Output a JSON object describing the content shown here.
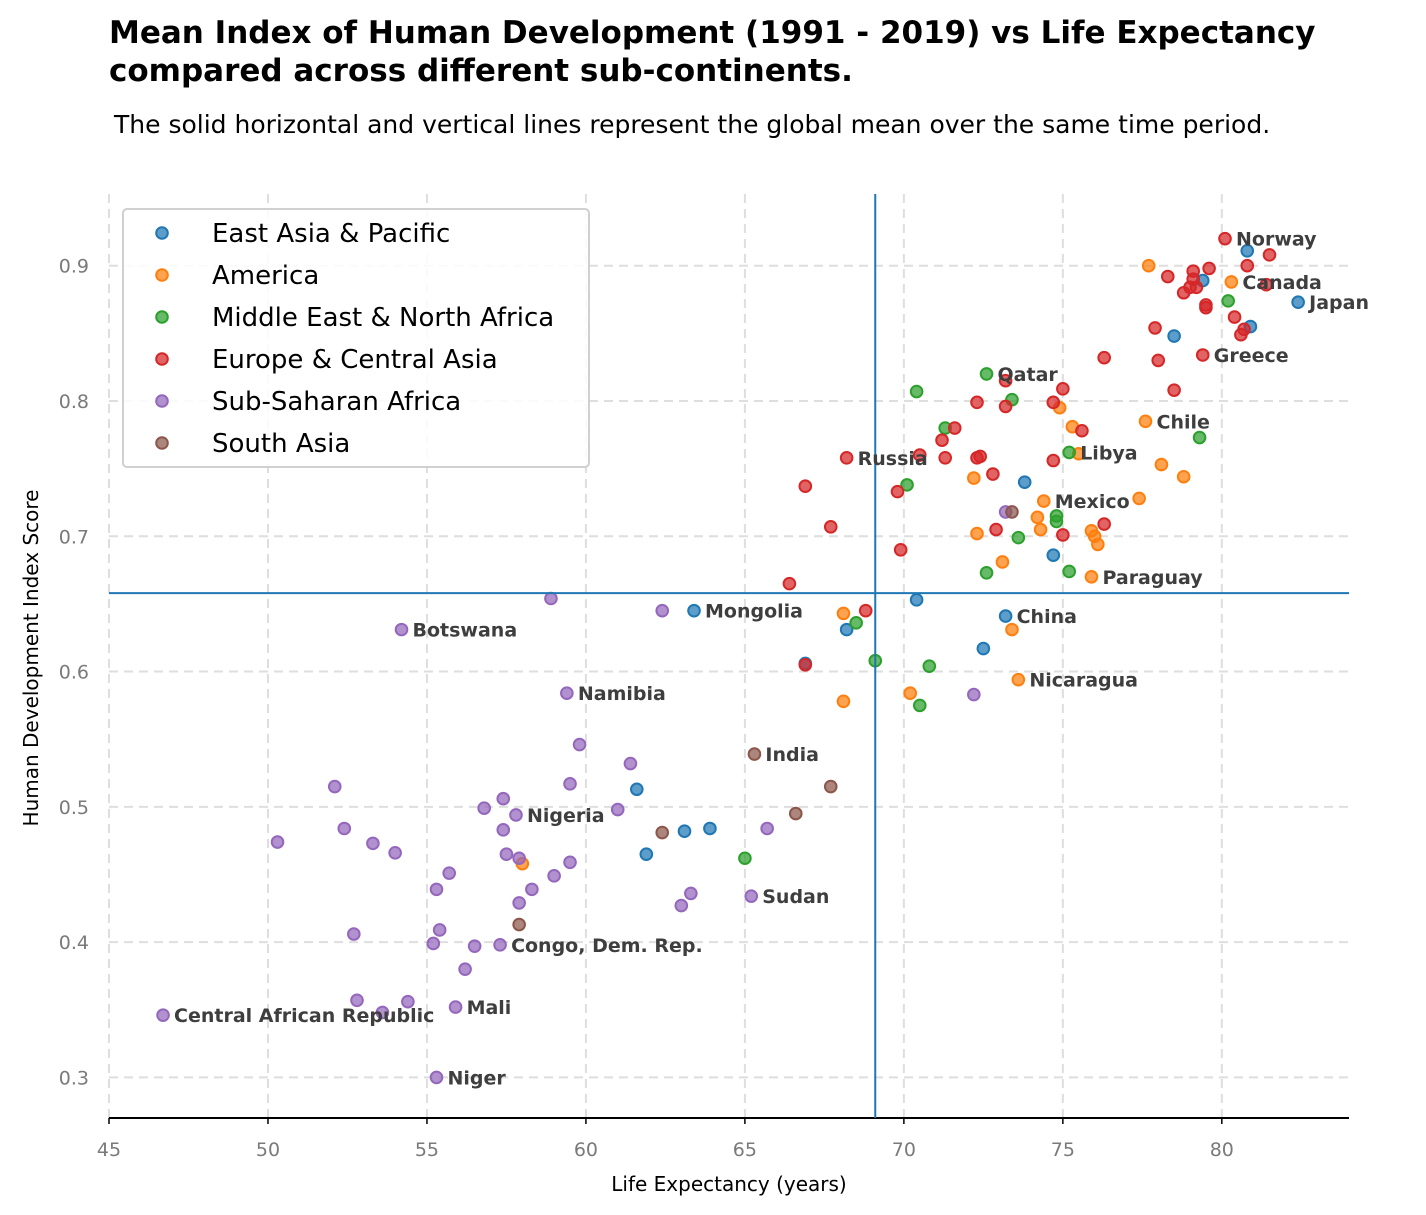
{
  "chart_data": {
    "type": "scatter",
    "title_lines": [
      "Mean Index of Human Development (1991 - 2019) vs Life Expectancy",
      "compared across different sub-continents."
    ],
    "subtitle": "The solid horizontal and vertical lines represent the global mean over the same time period.",
    "xlabel": "Life Expectancy (years)",
    "ylabel": "Human Development Index Score",
    "xlim": [
      45,
      84
    ],
    "ylim": [
      0.27,
      0.953
    ],
    "xticks": [
      45,
      50,
      55,
      60,
      65,
      70,
      75,
      80
    ],
    "yticks": [
      0.3,
      0.4,
      0.5,
      0.6,
      0.7,
      0.8,
      0.9
    ],
    "grid": true,
    "legend_position": "top-left",
    "global_mean": {
      "x": 69.1,
      "y": 0.658
    },
    "mean_line_color": "#1f77b4",
    "series": [
      {
        "name": "East Asia & Pacific",
        "color": "#1f77b4",
        "points": [
          [
            80.8,
            0.911
          ],
          [
            79.4,
            0.889
          ],
          [
            80.9,
            0.855
          ],
          [
            78.5,
            0.848
          ],
          [
            82.4,
            0.873
          ],
          [
            73.8,
            0.74
          ],
          [
            74.7,
            0.686
          ],
          [
            70.4,
            0.653
          ],
          [
            63.4,
            0.645
          ],
          [
            73.2,
            0.641
          ],
          [
            68.2,
            0.631
          ],
          [
            72.5,
            0.617
          ],
          [
            66.9,
            0.606
          ],
          [
            61.6,
            0.513
          ],
          [
            63.9,
            0.484
          ],
          [
            63.1,
            0.482
          ],
          [
            61.9,
            0.465
          ]
        ]
      },
      {
        "name": "America",
        "color": "#ff7f0e",
        "points": [
          [
            77.7,
            0.9
          ],
          [
            80.3,
            0.888
          ],
          [
            74.9,
            0.795
          ],
          [
            75.3,
            0.781
          ],
          [
            77.6,
            0.785
          ],
          [
            75.5,
            0.761
          ],
          [
            78.1,
            0.753
          ],
          [
            78.8,
            0.744
          ],
          [
            72.2,
            0.743
          ],
          [
            77.4,
            0.728
          ],
          [
            74.4,
            0.726
          ],
          [
            74.2,
            0.714
          ],
          [
            74.3,
            0.705
          ],
          [
            75.9,
            0.704
          ],
          [
            76.0,
            0.7
          ],
          [
            72.3,
            0.702
          ],
          [
            76.1,
            0.694
          ],
          [
            73.1,
            0.681
          ],
          [
            75.9,
            0.67
          ],
          [
            68.1,
            0.643
          ],
          [
            73.4,
            0.631
          ],
          [
            73.6,
            0.594
          ],
          [
            70.2,
            0.584
          ],
          [
            68.1,
            0.578
          ],
          [
            58.0,
            0.458
          ]
        ]
      },
      {
        "name": "Middle East & North Africa",
        "color": "#2ca02c",
        "points": [
          [
            80.2,
            0.874
          ],
          [
            72.6,
            0.82
          ],
          [
            70.4,
            0.807
          ],
          [
            73.4,
            0.801
          ],
          [
            71.3,
            0.78
          ],
          [
            79.3,
            0.773
          ],
          [
            75.2,
            0.762
          ],
          [
            70.1,
            0.738
          ],
          [
            74.8,
            0.715
          ],
          [
            74.8,
            0.711
          ],
          [
            73.6,
            0.699
          ],
          [
            72.6,
            0.673
          ],
          [
            75.2,
            0.674
          ],
          [
            68.5,
            0.636
          ],
          [
            69.1,
            0.608
          ],
          [
            70.8,
            0.604
          ],
          [
            70.5,
            0.575
          ],
          [
            65.0,
            0.462
          ]
        ]
      },
      {
        "name": "Europe & Central Asia",
        "color": "#d62728",
        "points": [
          [
            80.1,
            0.92
          ],
          [
            81.5,
            0.908
          ],
          [
            80.8,
            0.9
          ],
          [
            79.6,
            0.898
          ],
          [
            78.3,
            0.892
          ],
          [
            79.1,
            0.896
          ],
          [
            79.1,
            0.89
          ],
          [
            81.4,
            0.886
          ],
          [
            79.0,
            0.884
          ],
          [
            79.2,
            0.884
          ],
          [
            78.8,
            0.88
          ],
          [
            79.5,
            0.871
          ],
          [
            79.5,
            0.869
          ],
          [
            80.4,
            0.862
          ],
          [
            80.7,
            0.853
          ],
          [
            80.6,
            0.849
          ],
          [
            77.9,
            0.854
          ],
          [
            76.3,
            0.832
          ],
          [
            78.0,
            0.83
          ],
          [
            79.4,
            0.834
          ],
          [
            73.2,
            0.815
          ],
          [
            75.0,
            0.809
          ],
          [
            78.5,
            0.808
          ],
          [
            72.3,
            0.799
          ],
          [
            74.7,
            0.799
          ],
          [
            73.2,
            0.796
          ],
          [
            71.6,
            0.78
          ],
          [
            75.6,
            0.778
          ],
          [
            71.2,
            0.771
          ],
          [
            70.5,
            0.76
          ],
          [
            72.4,
            0.759
          ],
          [
            72.3,
            0.758
          ],
          [
            71.3,
            0.758
          ],
          [
            74.7,
            0.756
          ],
          [
            68.2,
            0.758
          ],
          [
            72.8,
            0.746
          ],
          [
            66.9,
            0.737
          ],
          [
            69.8,
            0.733
          ],
          [
            76.3,
            0.709
          ],
          [
            67.7,
            0.707
          ],
          [
            72.9,
            0.705
          ],
          [
            75.0,
            0.701
          ],
          [
            69.9,
            0.69
          ],
          [
            66.4,
            0.665
          ],
          [
            68.8,
            0.645
          ],
          [
            66.9,
            0.605
          ]
        ]
      },
      {
        "name": "Sub-Saharan Africa",
        "color": "#9467bd",
        "points": [
          [
            58.9,
            0.654
          ],
          [
            62.4,
            0.645
          ],
          [
            54.2,
            0.631
          ],
          [
            73.2,
            0.718
          ],
          [
            72.2,
            0.583
          ],
          [
            59.4,
            0.584
          ],
          [
            59.8,
            0.546
          ],
          [
            61.4,
            0.532
          ],
          [
            59.5,
            0.517
          ],
          [
            52.1,
            0.515
          ],
          [
            57.4,
            0.506
          ],
          [
            56.8,
            0.499
          ],
          [
            61.0,
            0.498
          ],
          [
            57.8,
            0.494
          ],
          [
            52.4,
            0.484
          ],
          [
            57.4,
            0.483
          ],
          [
            65.7,
            0.484
          ],
          [
            50.3,
            0.474
          ],
          [
            53.3,
            0.473
          ],
          [
            54.0,
            0.466
          ],
          [
            57.5,
            0.465
          ],
          [
            57.9,
            0.462
          ],
          [
            59.5,
            0.459
          ],
          [
            55.7,
            0.451
          ],
          [
            59.0,
            0.449
          ],
          [
            55.3,
            0.439
          ],
          [
            58.3,
            0.439
          ],
          [
            63.3,
            0.436
          ],
          [
            65.2,
            0.434
          ],
          [
            57.9,
            0.429
          ],
          [
            63.0,
            0.427
          ],
          [
            55.4,
            0.409
          ],
          [
            52.7,
            0.406
          ],
          [
            55.2,
            0.399
          ],
          [
            57.3,
            0.398
          ],
          [
            56.5,
            0.397
          ],
          [
            56.2,
            0.38
          ],
          [
            52.8,
            0.357
          ],
          [
            54.4,
            0.356
          ],
          [
            55.9,
            0.352
          ],
          [
            53.6,
            0.348
          ],
          [
            46.7,
            0.346
          ],
          [
            55.3,
            0.3
          ]
        ]
      },
      {
        "name": "South Asia",
        "color": "#8c564b",
        "points": [
          [
            73.4,
            0.718
          ],
          [
            65.3,
            0.539
          ],
          [
            67.7,
            0.515
          ],
          [
            66.6,
            0.495
          ],
          [
            62.4,
            0.481
          ],
          [
            57.9,
            0.413
          ]
        ]
      }
    ],
    "annotations": [
      {
        "text": "Norway",
        "x": 80.1,
        "y": 0.92
      },
      {
        "text": "Canada",
        "x": 80.3,
        "y": 0.888
      },
      {
        "text": "Japan",
        "x": 82.4,
        "y": 0.873
      },
      {
        "text": "Greece",
        "x": 79.4,
        "y": 0.834
      },
      {
        "text": "Qatar",
        "x": 72.6,
        "y": 0.82
      },
      {
        "text": "Chile",
        "x": 77.6,
        "y": 0.785
      },
      {
        "text": "Libya",
        "x": 75.2,
        "y": 0.762
      },
      {
        "text": "Russia",
        "x": 68.2,
        "y": 0.758
      },
      {
        "text": "Mexico",
        "x": 74.4,
        "y": 0.726
      },
      {
        "text": "Paraguay",
        "x": 75.9,
        "y": 0.67
      },
      {
        "text": "Mongolia",
        "x": 63.4,
        "y": 0.645
      },
      {
        "text": "China",
        "x": 73.2,
        "y": 0.641
      },
      {
        "text": "Botswana",
        "x": 54.2,
        "y": 0.631
      },
      {
        "text": "Nicaragua",
        "x": 73.6,
        "y": 0.594
      },
      {
        "text": "Namibia",
        "x": 59.4,
        "y": 0.584
      },
      {
        "text": "India",
        "x": 65.3,
        "y": 0.539
      },
      {
        "text": "Nigeria",
        "x": 57.8,
        "y": 0.494
      },
      {
        "text": "Sudan",
        "x": 65.2,
        "y": 0.434
      },
      {
        "text": "Congo, Dem. Rep.",
        "x": 57.3,
        "y": 0.398
      },
      {
        "text": "Central African Republic",
        "x": 46.7,
        "y": 0.346
      },
      {
        "text": "Mali",
        "x": 55.9,
        "y": 0.352
      },
      {
        "text": "Niger",
        "x": 55.3,
        "y": 0.3
      }
    ]
  }
}
